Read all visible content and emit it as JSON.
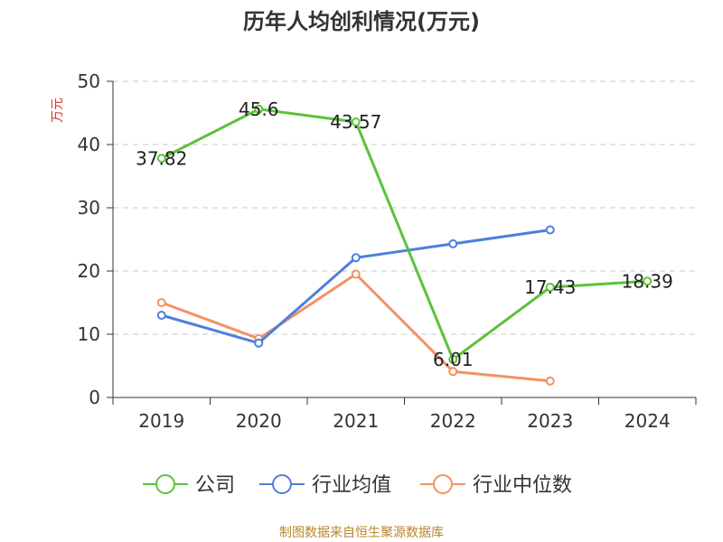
{
  "chart_data": {
    "type": "line",
    "title": "历年人均创利情况(万元)",
    "ylabel": "万元",
    "xlabel": "",
    "categories": [
      "2019",
      "2020",
      "2021",
      "2022",
      "2023",
      "2024"
    ],
    "ylim": [
      0,
      50
    ],
    "yticks": [
      0,
      10,
      20,
      30,
      40,
      50
    ],
    "grid": true,
    "legend_position": "bottom",
    "series": [
      {
        "name": "公司",
        "color": "#5cc23a",
        "values": [
          37.82,
          45.6,
          43.57,
          6.01,
          17.43,
          18.39
        ],
        "data_labels": [
          "37.82",
          "45.6",
          "43.57",
          "6.01",
          "17.43",
          "18.39"
        ]
      },
      {
        "name": "行业均值",
        "color": "#4e7fde",
        "values": [
          13.0,
          8.6,
          22.1,
          24.3,
          26.5,
          null
        ]
      },
      {
        "name": "行业中位数",
        "color": "#f29263",
        "values": [
          15.0,
          9.3,
          19.5,
          4.1,
          2.6,
          null
        ]
      }
    ]
  },
  "source_note": "制图数据来自恒生聚源数据库"
}
